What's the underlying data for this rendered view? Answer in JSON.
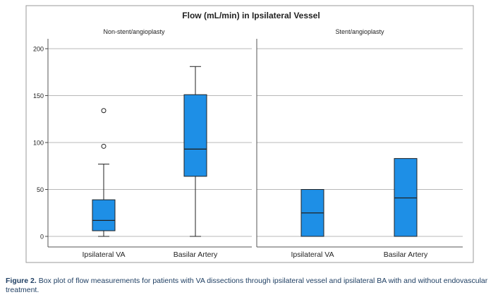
{
  "chart_data": {
    "type": "box",
    "title": "Flow (mL/min) in Ipsilateral Vessel",
    "ylim": [
      0,
      200
    ],
    "yticks": [
      0,
      50,
      100,
      150,
      200
    ],
    "grid": true,
    "box_color": "#1e8fe6",
    "panels": [
      {
        "label": "Non-stent/angioplasty",
        "categories": [
          "Ipsilateral VA",
          "Basilar Artery"
        ],
        "boxes": [
          {
            "category": "Ipsilateral VA",
            "min": 0,
            "q1": 6,
            "median": 17,
            "q3": 39,
            "max": 77,
            "outliers": [
              96,
              134
            ]
          },
          {
            "category": "Basilar Artery",
            "min": 0,
            "q1": 64,
            "median": 93,
            "q3": 151,
            "max": 181,
            "outliers": []
          }
        ]
      },
      {
        "label": "Stent/angioplasty",
        "categories": [
          "Ipsilateral VA",
          "Basilar Artery"
        ],
        "boxes": [
          {
            "category": "Ipsilateral VA",
            "min": 0,
            "q1": 0,
            "median": 25,
            "q3": 50,
            "max": 50,
            "outliers": []
          },
          {
            "category": "Basilar Artery",
            "min": 0,
            "q1": 0,
            "median": 41,
            "q3": 83,
            "max": 83,
            "outliers": []
          }
        ]
      }
    ]
  },
  "caption": {
    "label": "Figure 2.",
    "text": "Box plot of flow measurements for patients with VA dissections through ipsilateral vessel and ipsilateral BA with and without endovascular treatment."
  }
}
